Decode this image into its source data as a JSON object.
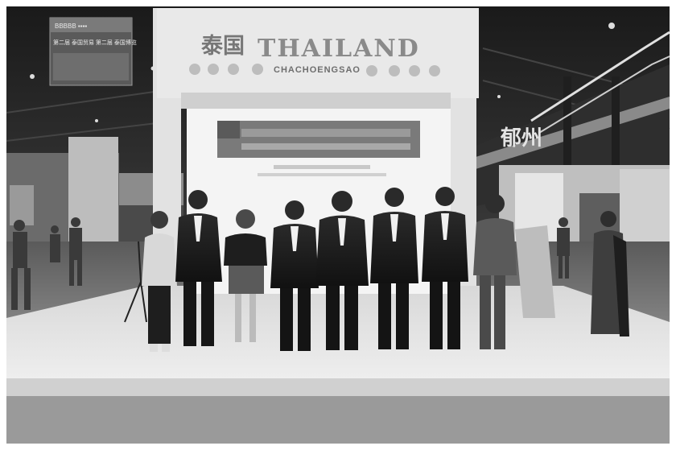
{
  "photo": {
    "sign_chinese": "泰国",
    "sign_english": "THAILAND",
    "sign_subtitle": "CHACHOENGSAO",
    "right_sign_chinese": "郁州",
    "left_billboard_line1": "第二届 泰国贸易 第二届 泰国博览",
    "left_billboard_header": "BBBBB ▪▪▪▪"
  }
}
